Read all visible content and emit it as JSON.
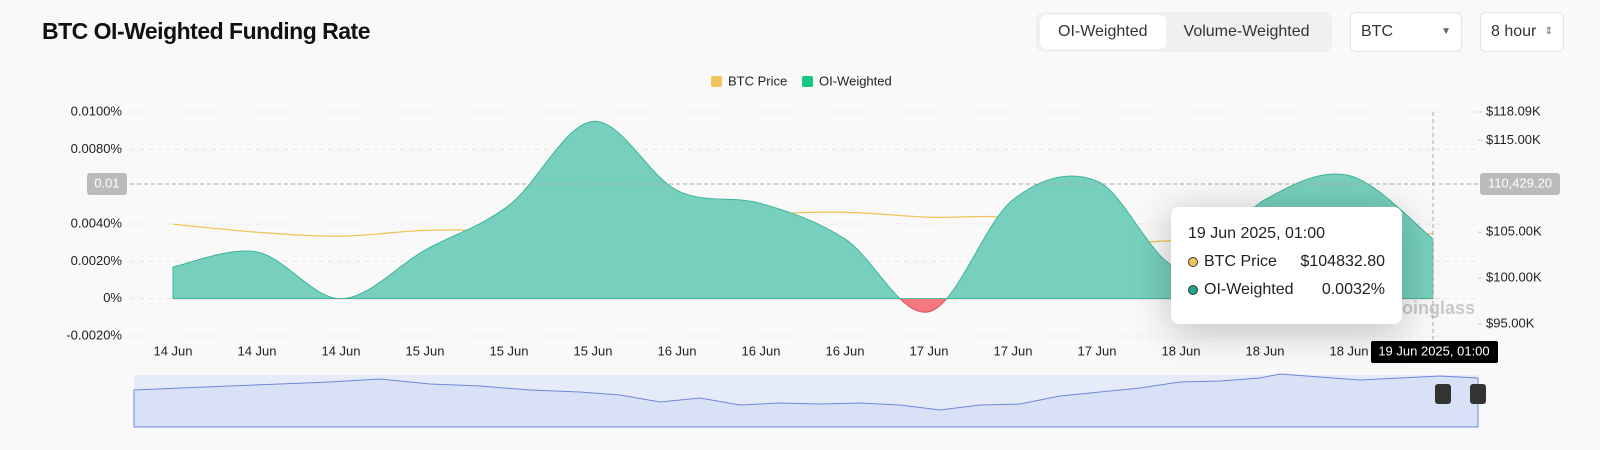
{
  "header": {
    "title": "BTC OI-Weighted Funding Rate",
    "tabs": [
      "OI-Weighted",
      "Volume-Weighted"
    ],
    "coin": "BTC",
    "interval": "8 hour"
  },
  "chart_data": {
    "type": "area",
    "categories": [
      "14 Jun",
      "14 Jun",
      "14 Jun",
      "15 Jun",
      "15 Jun",
      "15 Jun",
      "16 Jun",
      "16 Jun",
      "16 Jun",
      "17 Jun",
      "17 Jun",
      "17 Jun",
      "18 Jun",
      "18 Jun",
      "18 Jun",
      null
    ],
    "series": [
      {
        "name": "BTC Price",
        "color": "#f2c55c",
        "axis": "y2",
        "values": [
          105870,
          105000,
          104570,
          105200,
          105200,
          105300,
          105430,
          106850,
          107170,
          106630,
          106520,
          104130,
          104130,
          105000,
          105000,
          104832.8
        ]
      },
      {
        "name": "OI-Weighted",
        "color": "#16c784",
        "values": [
          0.0017,
          0.0025,
          0.0,
          0.0026,
          0.005,
          0.0095,
          0.0058,
          0.0051,
          0.0032,
          -0.0007,
          0.0053,
          0.0063,
          0.0016,
          0.0053,
          0.0066,
          0.0032
        ]
      }
    ],
    "ylim": [
      -0.002,
      0.01
    ],
    "yticks": [
      {
        "value": -0.002,
        "label": "-0.0020%"
      },
      {
        "value": 0,
        "label": "0%"
      },
      {
        "value": 0.002,
        "label": "0.0020%"
      },
      {
        "value": 0.004,
        "label": "0.0040%"
      },
      {
        "value": 0.008,
        "label": "0.0080%"
      },
      {
        "value": 0.01,
        "label": "0.0100%"
      }
    ],
    "y2lim": [
      93700,
      118090
    ],
    "y2ticks": [
      {
        "value": 95000,
        "label": "$95.00K"
      },
      {
        "value": 100000,
        "label": "$100.00K"
      },
      {
        "value": 105000,
        "label": "$105.00K"
      },
      {
        "value": 115000,
        "label": "$115.00K"
      },
      {
        "value": 118090,
        "label": "$118.09K"
      }
    ],
    "grid": true,
    "crosshair": {
      "x_label": "19 Jun 2025, 01:00",
      "y_label": "0.01",
      "y2_label": "110,429.20"
    },
    "tooltip": {
      "title": "19 Jun 2025, 01:00",
      "rows": [
        {
          "name": "BTC Price",
          "value": "$104832.80"
        },
        {
          "name": "OI-Weighted",
          "value": "0.0032%"
        }
      ]
    },
    "watermark": "coinglass"
  }
}
